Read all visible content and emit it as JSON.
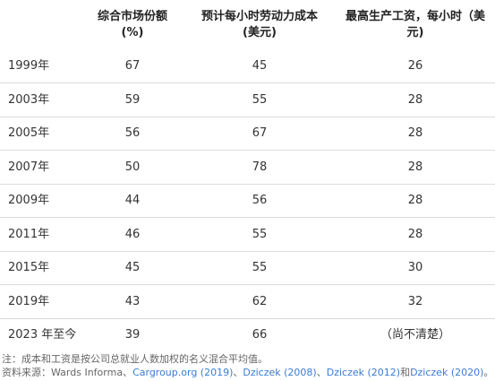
{
  "chart_data": {
    "type": "table",
    "columns": [
      {
        "line1": "综合市场份额",
        "line2": "(%)"
      },
      {
        "line1": "预计每小时劳动力成本",
        "line2": "(美元)"
      },
      {
        "line1": "最高生产工资，每小时（美",
        "line2": "元)"
      }
    ],
    "rows": [
      {
        "year": "1999年",
        "share": "67",
        "labor_cost": "45",
        "max_wage": "26"
      },
      {
        "year": "2003年",
        "share": "59",
        "labor_cost": "55",
        "max_wage": "28"
      },
      {
        "year": "2005年",
        "share": "56",
        "labor_cost": "67",
        "max_wage": "28"
      },
      {
        "year": "2007年",
        "share": "50",
        "labor_cost": "78",
        "max_wage": "28"
      },
      {
        "year": "2009年",
        "share": "44",
        "labor_cost": "56",
        "max_wage": "28"
      },
      {
        "year": "2011年",
        "share": "46",
        "labor_cost": "55",
        "max_wage": "28"
      },
      {
        "year": "2015年",
        "share": "45",
        "labor_cost": "55",
        "max_wage": "30"
      },
      {
        "year": "2019年",
        "share": "43",
        "labor_cost": "62",
        "max_wage": "32"
      },
      {
        "year": "2023 年至今",
        "share": "39",
        "labor_cost": "66",
        "max_wage": "（尚不清楚）"
      }
    ]
  },
  "notes": {
    "note": "注：成本和工资是按公司总就业人数加权的名义混合平均值。",
    "source_prefix": "资料来源：Wards Informa、",
    "sources": [
      {
        "text": "Cargroup.org (2019)",
        "sep": "、"
      },
      {
        "text": "Dziczek (2008)",
        "sep": "、"
      },
      {
        "text": "Dziczek (2012)",
        "sep": "和"
      },
      {
        "text": "Dziczek (2020)",
        "sep": "。"
      }
    ]
  }
}
